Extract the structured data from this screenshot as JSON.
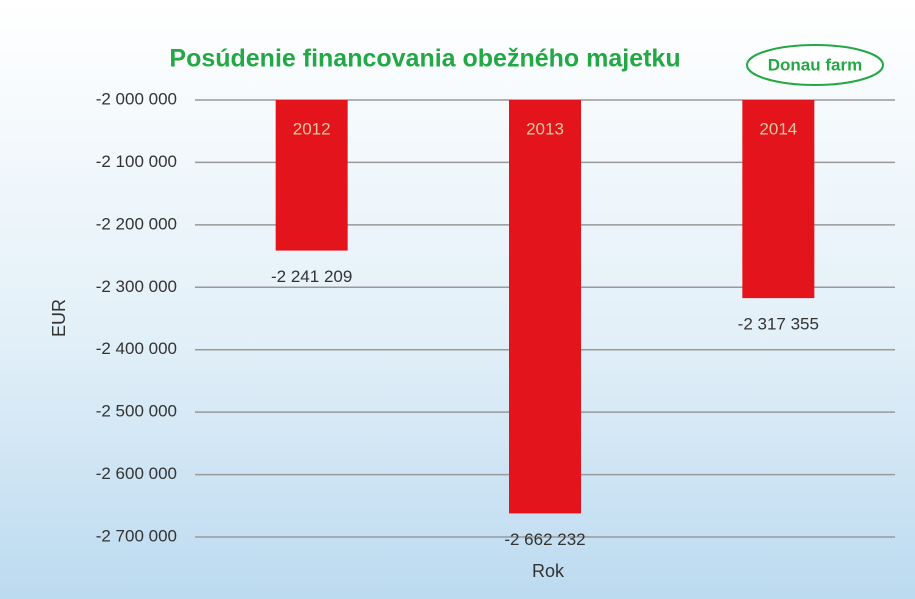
{
  "chart_data": {
    "type": "bar",
    "title": "Posúdenie financovania obežného majetku",
    "logo": "Donau farm",
    "x_label": "Rok",
    "y_label": "EUR",
    "categories": [
      "2012",
      "2013",
      "2014"
    ],
    "values": [
      -2241209,
      -2662232,
      -2317355
    ],
    "value_labels": [
      "-2 241 209",
      "-2 662 232",
      "-2 317 355"
    ],
    "color": "#e3141b",
    "ylim": [
      -2700000,
      -2000000
    ],
    "yticks": [
      {
        "value": -2000000,
        "label": "-2 000 000"
      },
      {
        "value": -2100000,
        "label": "-2 100 000"
      },
      {
        "value": -2200000,
        "label": "-2 200 000"
      },
      {
        "value": -2300000,
        "label": "-2 300 000"
      },
      {
        "value": -2400000,
        "label": "-2 400 000"
      },
      {
        "value": -2500000,
        "label": "-2 500 000"
      },
      {
        "value": -2600000,
        "label": "-2 600 000"
      },
      {
        "value": -2700000,
        "label": "-2 700 000"
      }
    ],
    "grid": true
  }
}
